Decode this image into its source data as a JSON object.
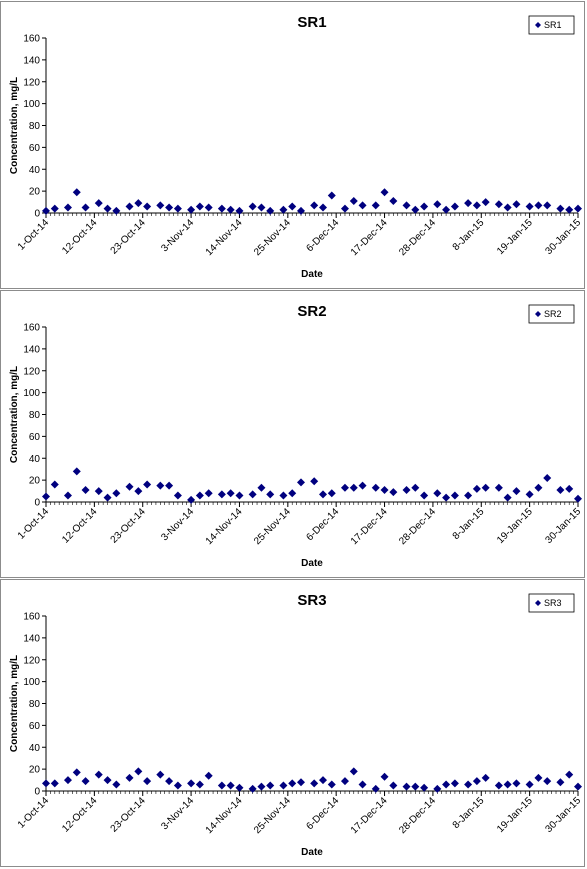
{
  "chart_data": [
    {
      "type": "scatter",
      "title": "SR1",
      "xlabel": "Date",
      "ylabel": "Concentration, mg/L",
      "ylim": [
        0,
        160
      ],
      "yticks": [
        "0",
        "20",
        "40",
        "60",
        "80",
        "100",
        "120",
        "140",
        "160"
      ],
      "xlim": [
        "2014-10-01",
        "2015-01-30"
      ],
      "xticks": [
        "1-Oct-14",
        "12-Oct-14",
        "23-Oct-14",
        "3-Nov-14",
        "14-Nov-14",
        "25-Nov-14",
        "6-Dec-14",
        "17-Dec-14",
        "28-Dec-14",
        "8-Jan-15",
        "19-Jan-15",
        "30-Jan-15"
      ],
      "legend_position": "top-right",
      "grid": false,
      "marker_color": "#00007f",
      "series": [
        {
          "name": "SR1",
          "x": [
            "2014-10-01",
            "2014-10-03",
            "2014-10-06",
            "2014-10-08",
            "2014-10-10",
            "2014-10-13",
            "2014-10-15",
            "2014-10-17",
            "2014-10-20",
            "2014-10-22",
            "2014-10-24",
            "2014-10-27",
            "2014-10-29",
            "2014-10-31",
            "2014-11-03",
            "2014-11-05",
            "2014-11-07",
            "2014-11-10",
            "2014-11-12",
            "2014-11-14",
            "2014-11-17",
            "2014-11-19",
            "2014-11-21",
            "2014-11-24",
            "2014-11-26",
            "2014-11-28",
            "2014-12-01",
            "2014-12-03",
            "2014-12-05",
            "2014-12-08",
            "2014-12-10",
            "2014-12-12",
            "2014-12-15",
            "2014-12-17",
            "2014-12-19",
            "2014-12-22",
            "2014-12-24",
            "2014-12-26",
            "2014-12-29",
            "2014-12-31",
            "2015-01-02",
            "2015-01-05",
            "2015-01-07",
            "2015-01-09",
            "2015-01-12",
            "2015-01-14",
            "2015-01-16",
            "2015-01-19",
            "2015-01-21",
            "2015-01-23",
            "2015-01-26",
            "2015-01-28",
            "2015-01-30"
          ],
          "y": [
            2,
            4,
            5,
            19,
            5,
            9,
            4,
            2,
            6,
            9,
            6,
            7,
            5,
            4,
            3,
            6,
            5,
            4,
            3,
            2,
            6,
            5,
            2,
            3,
            6,
            2,
            7,
            5,
            16,
            4,
            11,
            7,
            7,
            19,
            11,
            7,
            3,
            6,
            8,
            3,
            6,
            9,
            7,
            10,
            8,
            5,
            8,
            6,
            7,
            7,
            4,
            3,
            4
          ]
        }
      ]
    },
    {
      "type": "scatter",
      "title": "SR2",
      "xlabel": "Date",
      "ylabel": "Concentration, mg/L",
      "ylim": [
        0,
        160
      ],
      "yticks": [
        "0",
        "20",
        "40",
        "60",
        "80",
        "100",
        "120",
        "140",
        "160"
      ],
      "xlim": [
        "2014-10-01",
        "2015-01-30"
      ],
      "xticks": [
        "1-Oct-14",
        "12-Oct-14",
        "23-Oct-14",
        "3-Nov-14",
        "14-Nov-14",
        "25-Nov-14",
        "6-Dec-14",
        "17-Dec-14",
        "28-Dec-14",
        "8-Jan-15",
        "19-Jan-15",
        "30-Jan-15"
      ],
      "legend_position": "top-right",
      "grid": false,
      "marker_color": "#00007f",
      "series": [
        {
          "name": "SR2",
          "x": [
            "2014-10-01",
            "2014-10-03",
            "2014-10-06",
            "2014-10-08",
            "2014-10-10",
            "2014-10-13",
            "2014-10-15",
            "2014-10-17",
            "2014-10-20",
            "2014-10-22",
            "2014-10-24",
            "2014-10-27",
            "2014-10-29",
            "2014-10-31",
            "2014-11-03",
            "2014-11-05",
            "2014-11-07",
            "2014-11-10",
            "2014-11-12",
            "2014-11-14",
            "2014-11-17",
            "2014-11-19",
            "2014-11-21",
            "2014-11-24",
            "2014-11-26",
            "2014-11-28",
            "2014-12-01",
            "2014-12-03",
            "2014-12-05",
            "2014-12-08",
            "2014-12-10",
            "2014-12-12",
            "2014-12-15",
            "2014-12-17",
            "2014-12-19",
            "2014-12-22",
            "2014-12-24",
            "2014-12-26",
            "2014-12-29",
            "2014-12-31",
            "2015-01-02",
            "2015-01-05",
            "2015-01-07",
            "2015-01-09",
            "2015-01-12",
            "2015-01-14",
            "2015-01-16",
            "2015-01-19",
            "2015-01-21",
            "2015-01-23",
            "2015-01-26",
            "2015-01-28",
            "2015-01-30"
          ],
          "y": [
            5,
            16,
            6,
            28,
            11,
            10,
            4,
            8,
            14,
            10,
            16,
            15,
            15,
            6,
            2,
            6,
            8,
            7,
            8,
            6,
            7,
            13,
            7,
            6,
            8,
            18,
            19,
            7,
            8,
            13,
            13,
            15,
            13,
            11,
            9,
            11,
            13,
            6,
            8,
            4,
            6,
            6,
            12,
            13,
            13,
            4,
            10,
            7,
            13,
            22,
            11,
            12,
            3
          ]
        }
      ]
    },
    {
      "type": "scatter",
      "title": "SR3",
      "xlabel": "Date",
      "ylabel": "Concentration, mg/L",
      "ylim": [
        0,
        160
      ],
      "yticks": [
        "0",
        "20",
        "40",
        "60",
        "80",
        "100",
        "120",
        "140",
        "160"
      ],
      "xlim": [
        "2014-10-01",
        "2015-01-30"
      ],
      "xticks": [
        "1-Oct-14",
        "12-Oct-14",
        "23-Oct-14",
        "3-Nov-14",
        "14-Nov-14",
        "25-Nov-14",
        "6-Dec-14",
        "17-Dec-14",
        "28-Dec-14",
        "8-Jan-15",
        "19-Jan-15",
        "30-Jan-15"
      ],
      "legend_position": "top-right",
      "grid": false,
      "marker_color": "#00007f",
      "series": [
        {
          "name": "SR3",
          "x": [
            "2014-10-01",
            "2014-10-03",
            "2014-10-06",
            "2014-10-08",
            "2014-10-10",
            "2014-10-13",
            "2014-10-15",
            "2014-10-17",
            "2014-10-20",
            "2014-10-22",
            "2014-10-24",
            "2014-10-27",
            "2014-10-29",
            "2014-10-31",
            "2014-11-03",
            "2014-11-05",
            "2014-11-07",
            "2014-11-10",
            "2014-11-12",
            "2014-11-14",
            "2014-11-17",
            "2014-11-19",
            "2014-11-21",
            "2014-11-24",
            "2014-11-26",
            "2014-11-28",
            "2014-12-01",
            "2014-12-03",
            "2014-12-05",
            "2014-12-08",
            "2014-12-10",
            "2014-12-12",
            "2014-12-15",
            "2014-12-17",
            "2014-12-19",
            "2014-12-22",
            "2014-12-24",
            "2014-12-26",
            "2014-12-29",
            "2014-12-31",
            "2015-01-02",
            "2015-01-05",
            "2015-01-07",
            "2015-01-09",
            "2015-01-12",
            "2015-01-14",
            "2015-01-16",
            "2015-01-19",
            "2015-01-21",
            "2015-01-23",
            "2015-01-26",
            "2015-01-28",
            "2015-01-30"
          ],
          "y": [
            7,
            7,
            10,
            17,
            9,
            15,
            10,
            6,
            12,
            18,
            9,
            15,
            9,
            5,
            7,
            6,
            14,
            5,
            5,
            3,
            2,
            4,
            5,
            5,
            7,
            8,
            7,
            10,
            6,
            9,
            18,
            6,
            2,
            13,
            5,
            4,
            4,
            3,
            2,
            6,
            7,
            6,
            9,
            12,
            5,
            6,
            7,
            6,
            12,
            9,
            8,
            15,
            4
          ]
        }
      ]
    }
  ]
}
